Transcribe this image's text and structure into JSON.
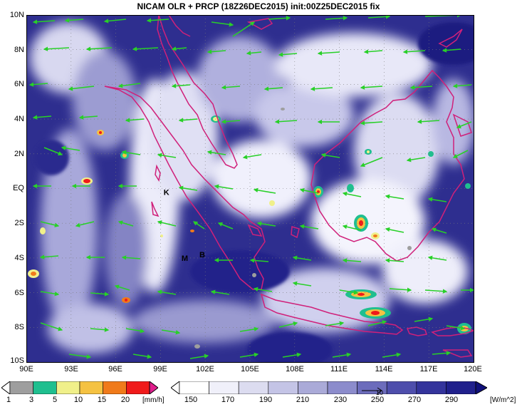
{
  "title": "NICAM OLR + PRCP (18Z26DEC2015) init:00Z25DEC2015 fix",
  "lat_labels": [
    "10N",
    "8N",
    "6N",
    "4N",
    "2N",
    "EQ",
    "2S",
    "4S",
    "6S",
    "8S",
    "10S"
  ],
  "lon_labels": [
    "90E",
    "93E",
    "96E",
    "99E",
    "102E",
    "105E",
    "108E",
    "111E",
    "114E",
    "117E",
    "120E"
  ],
  "map_markers": [
    {
      "label": "K",
      "lon": 99.4,
      "lat": -0.2
    },
    {
      "label": "M",
      "lon": 100.6,
      "lat": -4.0
    },
    {
      "label": "B",
      "lon": 101.8,
      "lat": -3.8
    }
  ],
  "precip_colorbar": {
    "ticks": [
      "1",
      "3",
      "5",
      "10",
      "15",
      "20"
    ],
    "unit": "[mm/h]",
    "colors": [
      "#9e9e9e",
      "#1fbf8f",
      "#f0f08a",
      "#f5c242",
      "#f07a1a",
      "#f01a1a",
      "#e01e8c"
    ]
  },
  "olr_colorbar": {
    "ticks": [
      "150",
      "170",
      "190",
      "210",
      "230",
      "250",
      "270",
      "290"
    ],
    "unit": "[W/m^2]",
    "colors": [
      "#ffffff",
      "#f0f0fa",
      "#dcdcf0",
      "#c4c4e6",
      "#aaaad8",
      "#8c8ccc",
      "#6c6cbc",
      "#4e4eac",
      "#34349c",
      "#20208c",
      "#10107a"
    ]
  },
  "vector_reference_label": "10",
  "colors": {
    "coastline": "#d0207a",
    "wind_vector": "#28d028",
    "background": "#2a2a8c"
  }
}
